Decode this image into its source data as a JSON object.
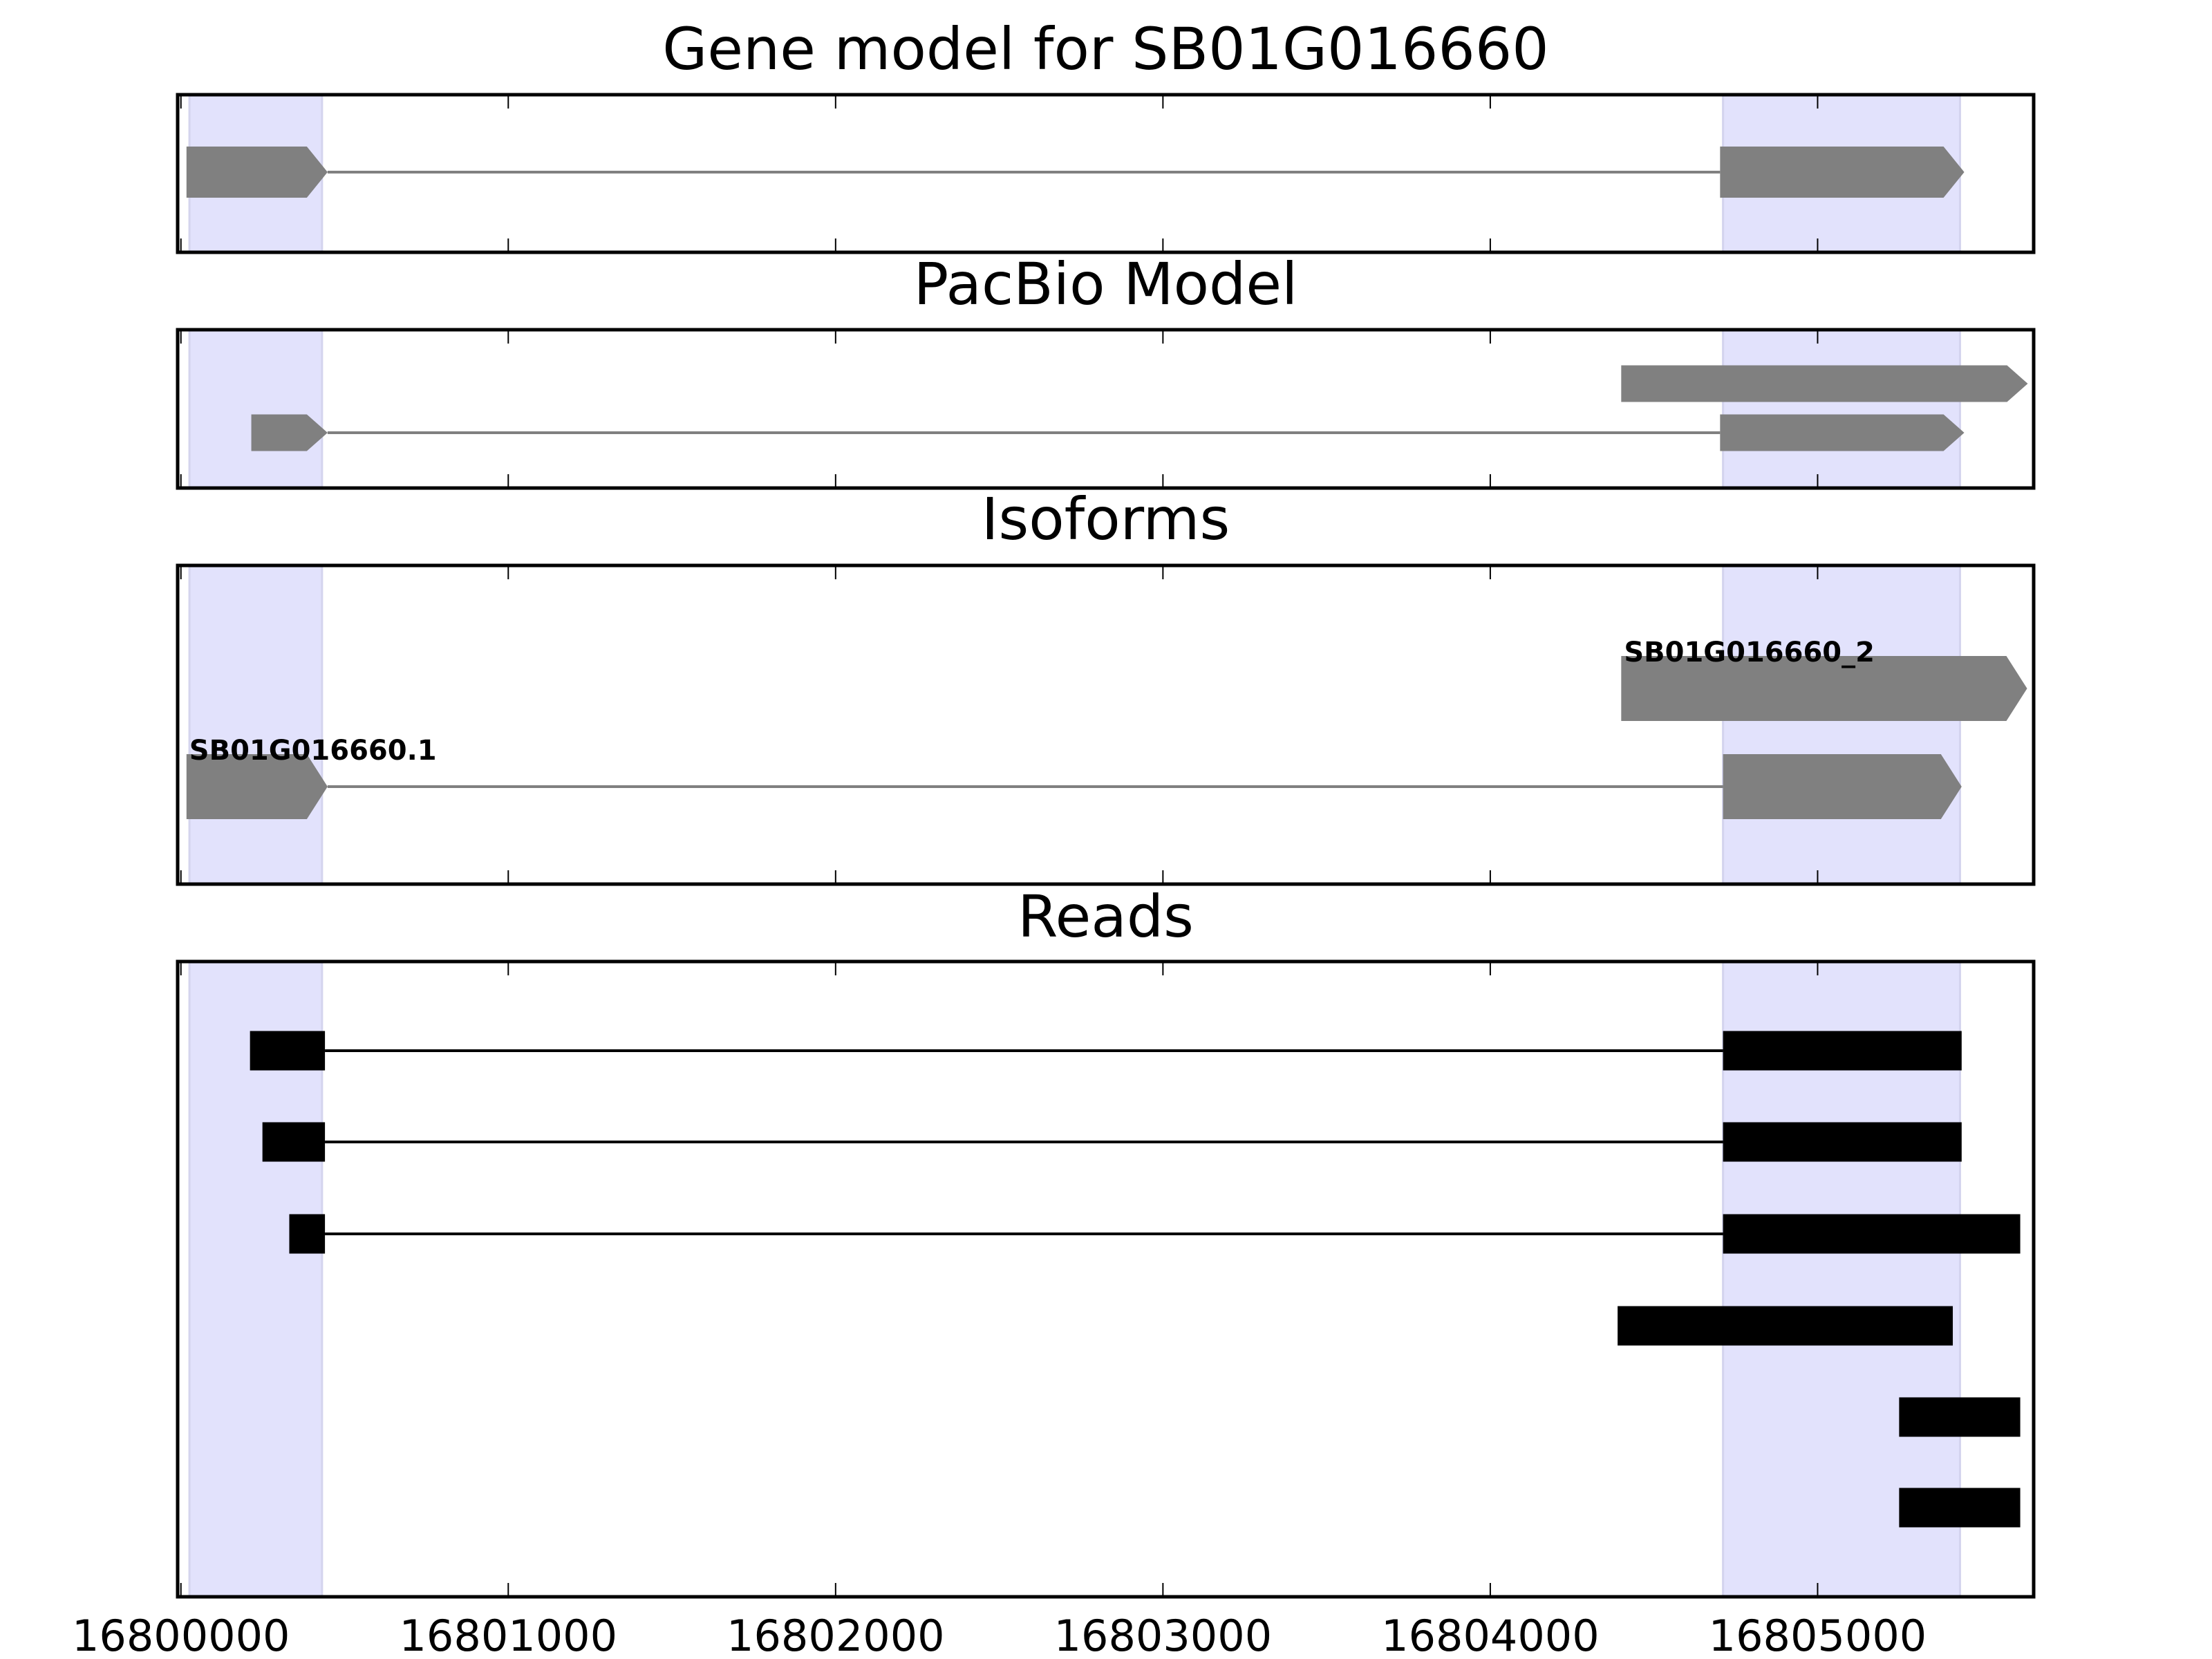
{
  "chart_data": {
    "type": "gene-track",
    "xlim": [
      16799990,
      16805660
    ],
    "xticks": [
      16800000,
      16801000,
      16802000,
      16803000,
      16804000,
      16805000
    ],
    "xtick_labels": [
      "16800000",
      "16801000",
      "16802000",
      "16803000",
      "16804000",
      "16805000"
    ],
    "highlight_color": "#e2e2fc",
    "highlight_regions": [
      [
        16800026,
        16800431
      ],
      [
        16804711,
        16805435
      ]
    ],
    "panels": [
      {
        "title": "Gene model for SB01G016660",
        "color": "#808080",
        "style": "arrow",
        "tracks": [
          {
            "label": "",
            "exons": [
              [
                16800017,
                16800448
              ],
              [
                16804702,
                16805448
              ]
            ]
          }
        ]
      },
      {
        "title": "PacBio Model",
        "color": "#808080",
        "style": "arrow",
        "tracks": [
          {
            "label": "",
            "exons": [
              [
                16804400,
                16805642
              ]
            ]
          },
          {
            "label": "",
            "exons": [
              [
                16800215,
                16800448
              ],
              [
                16804702,
                16805448
              ]
            ]
          }
        ]
      },
      {
        "title": "Isoforms",
        "color": "#808080",
        "style": "arrow",
        "tracks": [
          {
            "label": "SB01G016660_2",
            "exons": [
              [
                16804400,
                16805640
              ]
            ]
          },
          {
            "label": "SB01G016660.1",
            "exons": [
              [
                16800017,
                16800448
              ],
              [
                16804711,
                16805440
              ]
            ]
          }
        ]
      },
      {
        "title": "Reads",
        "color": "#000000",
        "style": "box",
        "tracks": [
          {
            "label": "",
            "exons": [
              [
                16800211,
                16800440
              ],
              [
                16804711,
                16805440
              ]
            ]
          },
          {
            "label": "",
            "exons": [
              [
                16800249,
                16800440
              ],
              [
                16804711,
                16805440
              ]
            ]
          },
          {
            "label": "",
            "exons": [
              [
                16800331,
                16800440
              ],
              [
                16804711,
                16805619
              ]
            ]
          },
          {
            "label": "",
            "exons": [
              [
                16804389,
                16805413
              ]
            ]
          },
          {
            "label": "",
            "exons": [
              [
                16805249,
                16805619
              ]
            ]
          },
          {
            "label": "",
            "exons": [
              [
                16805249,
                16805619
              ]
            ]
          }
        ]
      }
    ]
  }
}
